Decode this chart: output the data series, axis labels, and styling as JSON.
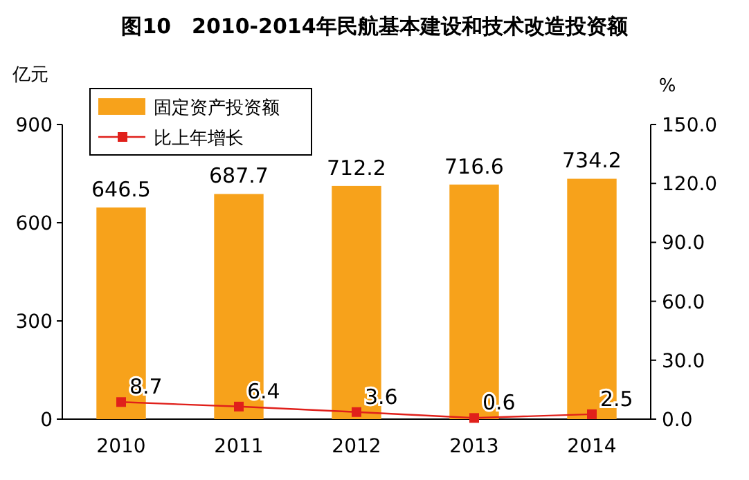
{
  "chart_data": {
    "type": "bar",
    "title": "图10　2010-2014年民航基本建设和技术改造投资额",
    "ylabel": "亿元",
    "y2label": "%",
    "categories": [
      "2010",
      "2011",
      "2012",
      "2013",
      "2014"
    ],
    "series": [
      {
        "name": "固定资产投资额",
        "color": "#f7a21b",
        "values": [
          646.5,
          687.7,
          712.2,
          716.6,
          734.2
        ]
      },
      {
        "name": "比上年增长",
        "type": "line",
        "axis": "y2",
        "color": "#e0201b",
        "marker": "square",
        "values": [
          8.7,
          6.4,
          3.6,
          0.6,
          2.5
        ]
      }
    ],
    "ylim": [
      0,
      900
    ],
    "yticks": [
      0,
      300,
      600,
      900
    ],
    "y2lim": [
      0,
      150
    ],
    "y2ticks": [
      {
        "value": 0,
        "label": "0.0"
      },
      {
        "value": 30,
        "label": "30.0"
      },
      {
        "value": 60,
        "label": "60.0"
      },
      {
        "value": 90,
        "label": "90.0"
      },
      {
        "value": 120,
        "label": "120.0"
      },
      {
        "value": 150,
        "label": "150.0"
      }
    ],
    "data_labels": true,
    "legend": "top left",
    "grid": false
  }
}
